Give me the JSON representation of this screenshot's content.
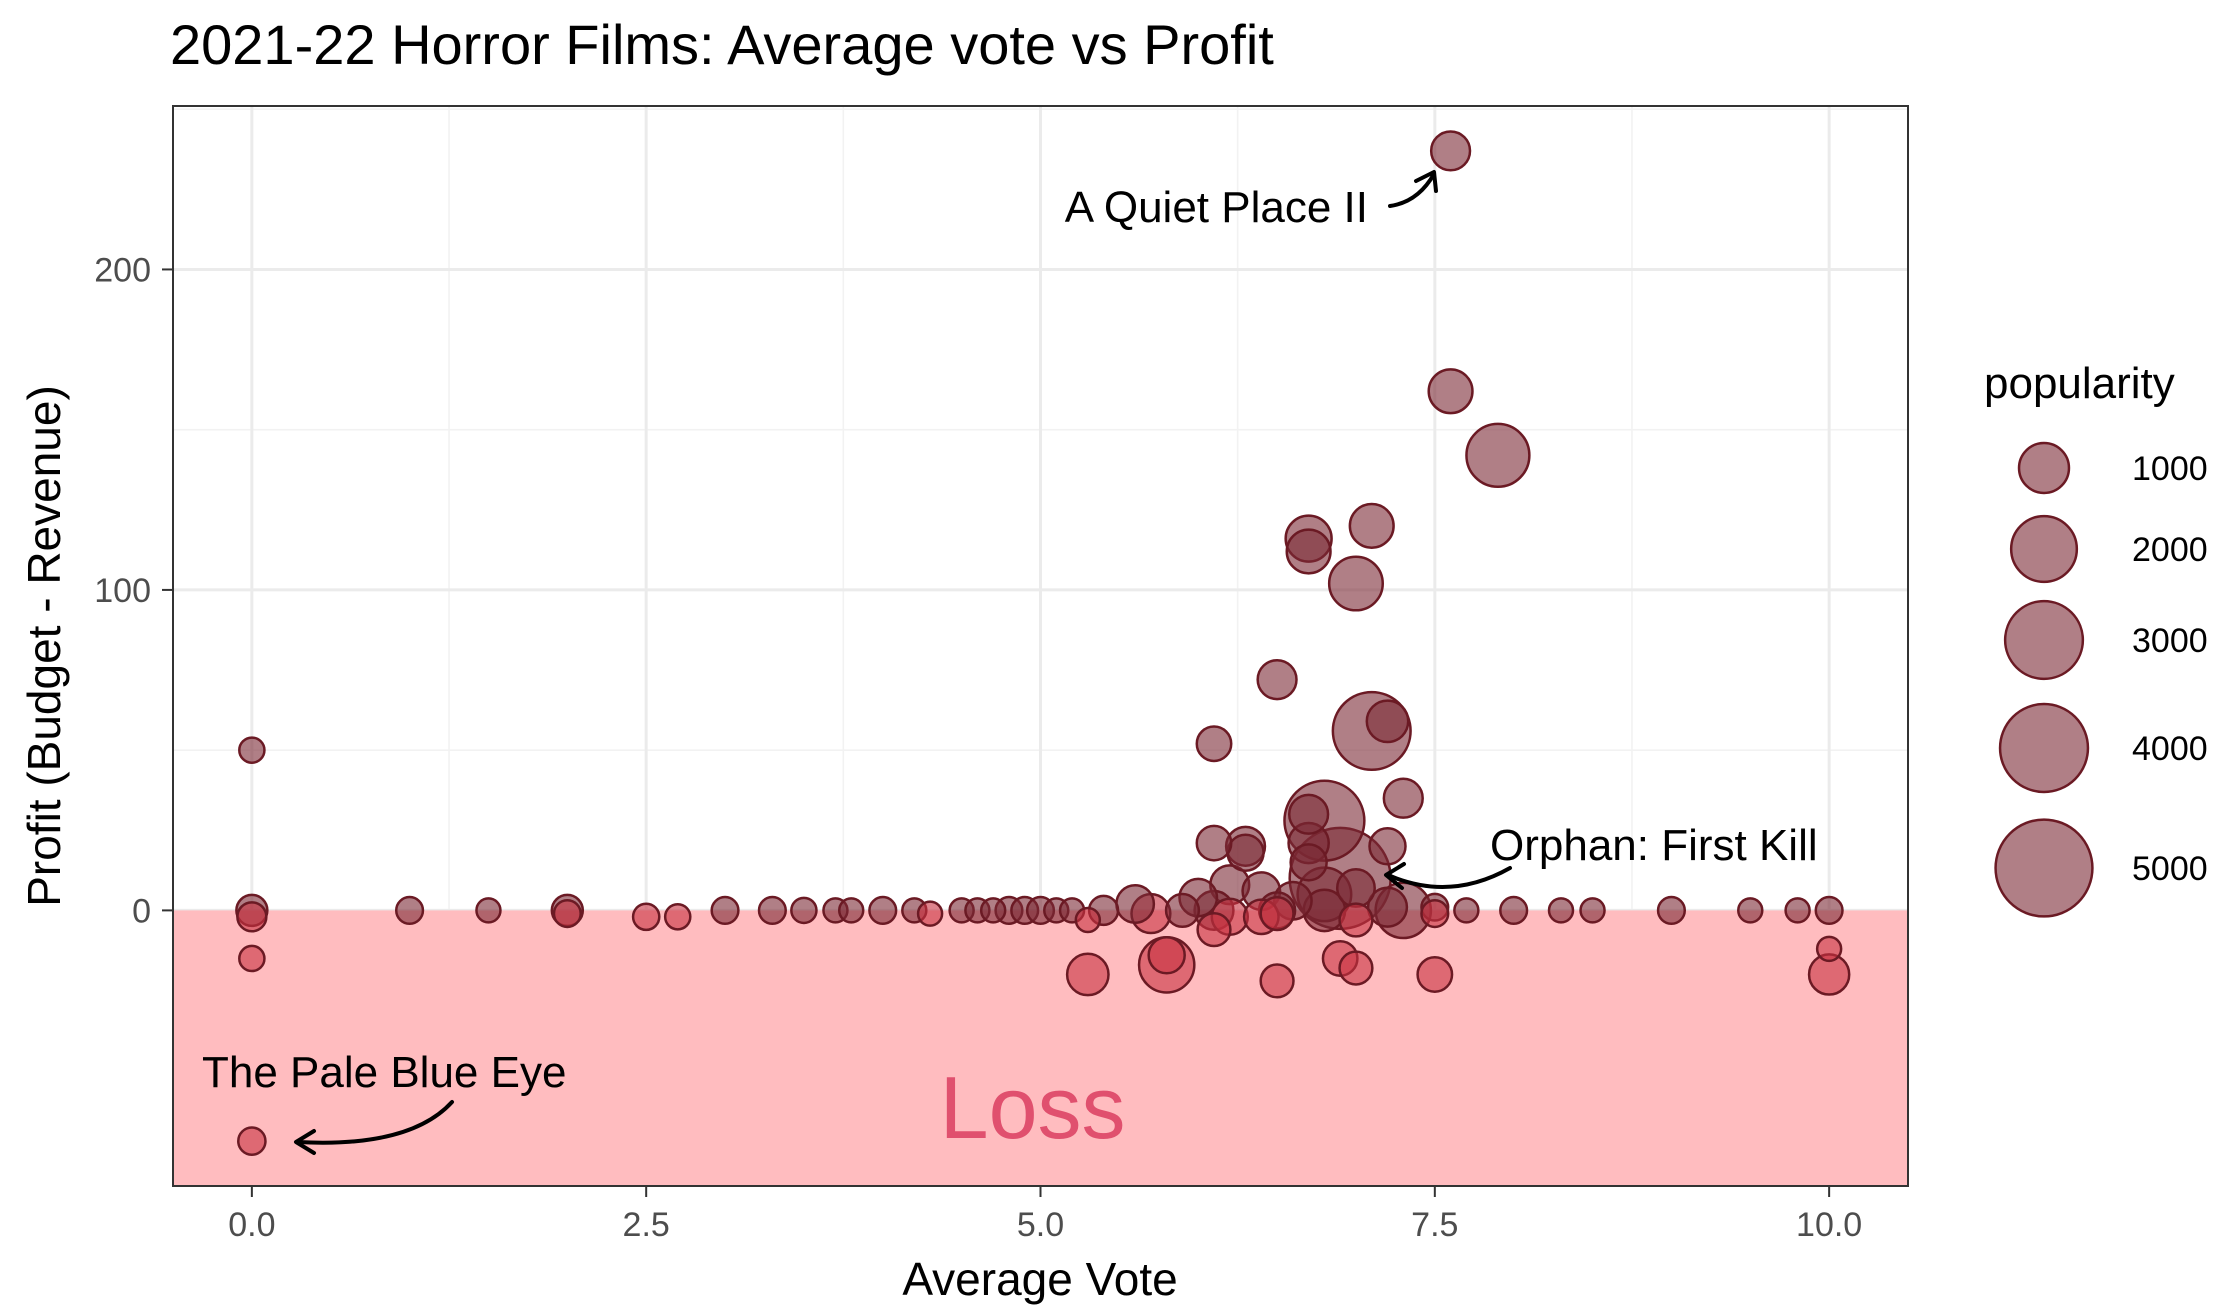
{
  "chart_data": {
    "type": "scatter",
    "title": "2021-22 Horror Films: Average vote vs Profit",
    "xlabel": "Average Vote",
    "ylabel": "Profit (Budget - Revenue)",
    "xlim": [
      -0.5,
      10.5
    ],
    "ylim": [
      -86,
      251
    ],
    "x_ticks": [
      0,
      2.5,
      5,
      7.5,
      10
    ],
    "x_tick_labels": [
      "0.0",
      "2.5",
      "5.0",
      "7.5",
      "10.0"
    ],
    "y_ticks": [
      0,
      100,
      200
    ],
    "y_tick_labels": [
      "0",
      "100",
      "200"
    ],
    "grid": true,
    "loss_region": {
      "label": "Loss",
      "y_from": -86,
      "y_to": 0,
      "color": "#ffbcbf"
    },
    "point_color": "#7b2935",
    "loss_point_color": "#c83241",
    "size_legend": {
      "title": "popularity",
      "placement": "right",
      "values": [
        1000,
        2000,
        3000,
        4000,
        5000
      ],
      "labels": [
        "1000",
        "2000",
        "3000",
        "4000",
        "5000"
      ]
    },
    "annotations": [
      {
        "text": "A Quiet Place II",
        "x": 7.6,
        "y": 237
      },
      {
        "text": "Orphan: First Kill",
        "x": 6.9,
        "y": 12
      },
      {
        "text": "The Pale Blue Eye",
        "x": 0,
        "y": -72
      }
    ],
    "points": [
      {
        "x": 7.6,
        "y": 237,
        "popularity": 500
      },
      {
        "x": 7.6,
        "y": 162,
        "popularity": 700
      },
      {
        "x": 7.9,
        "y": 142,
        "popularity": 1800
      },
      {
        "x": 6.7,
        "y": 116,
        "popularity": 800
      },
      {
        "x": 6.7,
        "y": 112,
        "popularity": 700
      },
      {
        "x": 7.1,
        "y": 120,
        "popularity": 700
      },
      {
        "x": 7.0,
        "y": 102,
        "popularity": 1200
      },
      {
        "x": 6.5,
        "y": 72,
        "popularity": 500
      },
      {
        "x": 7.1,
        "y": 56,
        "popularity": 3000
      },
      {
        "x": 7.2,
        "y": 59,
        "popularity": 600
      },
      {
        "x": 6.1,
        "y": 52,
        "popularity": 350
      },
      {
        "x": 7.3,
        "y": 35,
        "popularity": 500
      },
      {
        "x": 6.8,
        "y": 28,
        "popularity": 3200
      },
      {
        "x": 6.7,
        "y": 30,
        "popularity": 500
      },
      {
        "x": 6.7,
        "y": 21,
        "popularity": 550
      },
      {
        "x": 6.1,
        "y": 21,
        "popularity": 350
      },
      {
        "x": 6.3,
        "y": 20,
        "popularity": 500
      },
      {
        "x": 6.3,
        "y": 18,
        "popularity": 400
      },
      {
        "x": 7.2,
        "y": 20,
        "popularity": 400
      },
      {
        "x": 6.9,
        "y": 10,
        "popularity": 5500
      },
      {
        "x": 6.7,
        "y": 15,
        "popularity": 400
      },
      {
        "x": 6.2,
        "y": 8,
        "popularity": 500
      },
      {
        "x": 6.4,
        "y": 6,
        "popularity": 450
      },
      {
        "x": 6.8,
        "y": 5,
        "popularity": 1200
      },
      {
        "x": 7.0,
        "y": 7,
        "popularity": 450
      },
      {
        "x": 6.0,
        "y": 4,
        "popularity": 450
      },
      {
        "x": 5.6,
        "y": 2,
        "popularity": 450
      },
      {
        "x": 6.6,
        "y": 3,
        "popularity": 450
      },
      {
        "x": 7.3,
        "y": 0,
        "popularity": 1300
      },
      {
        "x": 7.2,
        "y": 1,
        "popularity": 500
      },
      {
        "x": 6.8,
        "y": 0,
        "popularity": 600
      },
      {
        "x": 6.5,
        "y": 0,
        "popularity": 400
      },
      {
        "x": 6.1,
        "y": 0,
        "popularity": 500
      },
      {
        "x": 5.9,
        "y": 0,
        "popularity": 300
      },
      {
        "x": 5.7,
        "y": -1,
        "popularity": 500
      },
      {
        "x": 5.4,
        "y": 0,
        "popularity": 200
      },
      {
        "x": 0,
        "y": 50,
        "popularity": 120
      },
      {
        "x": 0,
        "y": 0,
        "popularity": 250
      },
      {
        "x": 0,
        "y": -2,
        "popularity": 200
      },
      {
        "x": 0,
        "y": -15,
        "popularity": 120
      },
      {
        "x": 0,
        "y": -72,
        "popularity": 160
      },
      {
        "x": 1.0,
        "y": 0,
        "popularity": 150
      },
      {
        "x": 1.5,
        "y": 0,
        "popularity": 100
      },
      {
        "x": 2.0,
        "y": 0,
        "popularity": 250
      },
      {
        "x": 2.0,
        "y": -1,
        "popularity": 150
      },
      {
        "x": 2.5,
        "y": -2,
        "popularity": 140
      },
      {
        "x": 2.7,
        "y": -2,
        "popularity": 120
      },
      {
        "x": 3.0,
        "y": 0,
        "popularity": 150
      },
      {
        "x": 3.3,
        "y": 0,
        "popularity": 150
      },
      {
        "x": 3.5,
        "y": 0,
        "popularity": 120
      },
      {
        "x": 3.7,
        "y": 0,
        "popularity": 100
      },
      {
        "x": 3.8,
        "y": 0,
        "popularity": 100
      },
      {
        "x": 4.0,
        "y": 0,
        "popularity": 150
      },
      {
        "x": 4.2,
        "y": 0,
        "popularity": 100
      },
      {
        "x": 4.3,
        "y": -1,
        "popularity": 100
      },
      {
        "x": 4.5,
        "y": 0,
        "popularity": 100
      },
      {
        "x": 4.6,
        "y": 0,
        "popularity": 100
      },
      {
        "x": 4.7,
        "y": 0,
        "popularity": 100
      },
      {
        "x": 4.8,
        "y": 0,
        "popularity": 150
      },
      {
        "x": 4.9,
        "y": 0,
        "popularity": 150
      },
      {
        "x": 5.0,
        "y": 0,
        "popularity": 150
      },
      {
        "x": 5.1,
        "y": 0,
        "popularity": 100
      },
      {
        "x": 5.2,
        "y": 0,
        "popularity": 100
      },
      {
        "x": 5.3,
        "y": -3,
        "popularity": 100
      },
      {
        "x": 5.3,
        "y": -20,
        "popularity": 600
      },
      {
        "x": 5.8,
        "y": -17,
        "popularity": 1300
      },
      {
        "x": 5.8,
        "y": -14,
        "popularity": 400
      },
      {
        "x": 6.1,
        "y": -6,
        "popularity": 300
      },
      {
        "x": 6.2,
        "y": -2,
        "popularity": 400
      },
      {
        "x": 6.4,
        "y": -2,
        "popularity": 350
      },
      {
        "x": 6.5,
        "y": -1,
        "popularity": 300
      },
      {
        "x": 6.5,
        "y": -22,
        "popularity": 300
      },
      {
        "x": 6.9,
        "y": -15,
        "popularity": 350
      },
      {
        "x": 7.0,
        "y": -18,
        "popularity": 300
      },
      {
        "x": 7.0,
        "y": -3,
        "popularity": 300
      },
      {
        "x": 7.5,
        "y": 1,
        "popularity": 150
      },
      {
        "x": 7.5,
        "y": -1,
        "popularity": 150
      },
      {
        "x": 7.5,
        "y": -20,
        "popularity": 350
      },
      {
        "x": 7.7,
        "y": 0,
        "popularity": 100
      },
      {
        "x": 8.0,
        "y": 0,
        "popularity": 150
      },
      {
        "x": 8.3,
        "y": 0,
        "popularity": 100
      },
      {
        "x": 8.5,
        "y": 0,
        "popularity": 100
      },
      {
        "x": 9.0,
        "y": 0,
        "popularity": 150
      },
      {
        "x": 9.5,
        "y": 0,
        "popularity": 100
      },
      {
        "x": 9.8,
        "y": 0,
        "popularity": 100
      },
      {
        "x": 10.0,
        "y": 0,
        "popularity": 150
      },
      {
        "x": 10.0,
        "y": -12,
        "popularity": 100
      },
      {
        "x": 10.0,
        "y": -20,
        "popularity": 550
      }
    ]
  }
}
